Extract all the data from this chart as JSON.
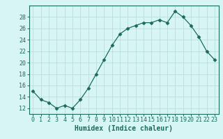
{
  "x": [
    0,
    1,
    2,
    3,
    4,
    5,
    6,
    7,
    8,
    9,
    10,
    11,
    12,
    13,
    14,
    15,
    16,
    17,
    18,
    19,
    20,
    21,
    22,
    23
  ],
  "y": [
    15,
    13.5,
    13,
    12,
    12.5,
    12,
    13.5,
    15.5,
    18,
    20.5,
    23,
    25,
    26,
    26.5,
    27,
    27,
    27.5,
    27,
    29,
    28,
    26.5,
    24.5,
    22,
    20.5
  ],
  "line_color": "#1a6b5a",
  "marker": "D",
  "marker_size": 2.5,
  "bg_color": "#d8f5f5",
  "grid_color": "#b8dede",
  "xlabel": "Humidex (Indice chaleur)",
  "ylabel": "",
  "xlim": [
    -0.5,
    23.5
  ],
  "ylim": [
    11,
    30
  ],
  "yticks": [
    12,
    14,
    16,
    18,
    20,
    22,
    24,
    26,
    28
  ],
  "xticks": [
    0,
    1,
    2,
    3,
    4,
    5,
    6,
    7,
    8,
    9,
    10,
    11,
    12,
    13,
    14,
    15,
    16,
    17,
    18,
    19,
    20,
    21,
    22,
    23
  ],
  "axis_color": "#1a6b5a",
  "tick_color": "#1a6b5a",
  "label_color": "#1a6b5a",
  "font_size_label": 7,
  "font_size_tick": 6
}
